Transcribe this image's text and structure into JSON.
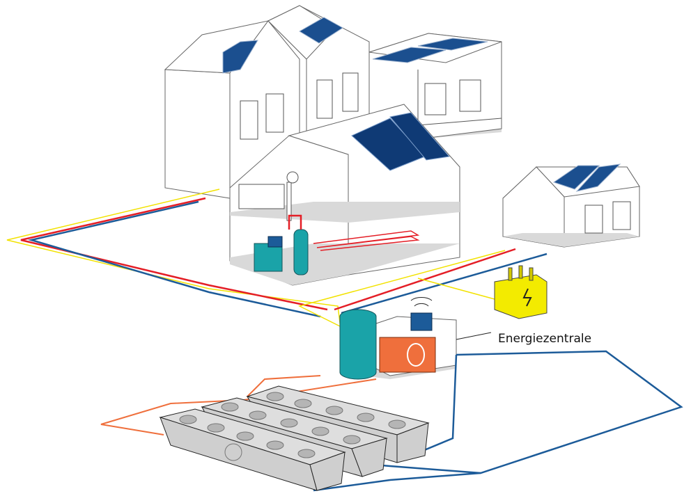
{
  "labels": {
    "energy_center": "Energiezentrale"
  }
}
